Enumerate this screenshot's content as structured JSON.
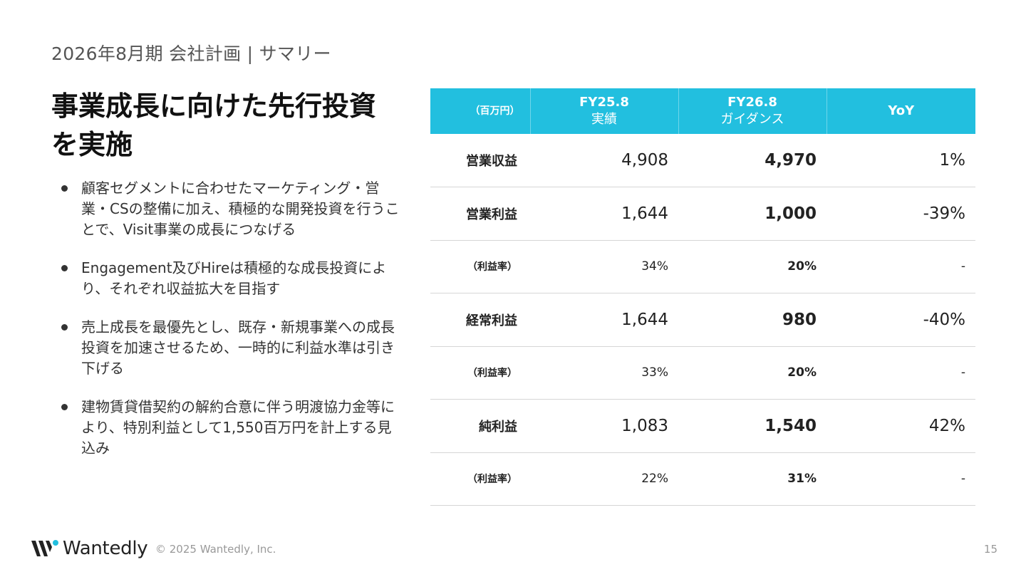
{
  "slide": {
    "section_title": "2026年8月期 会社計画 | サマリー",
    "headline": "事業成長に向けた先行投資を実施",
    "bullets": [
      "顧客セグメントに合わせたマーケティング・営業・CSの整備に加え、積極的な開発投資を行うことで、Visit事業の成長につなげる",
      "Engagement及びHireは積極的な成長投資により、それぞれ収益拡大を目指す",
      "売上成長を最優先とし、既存・新規事業への成長投資を加速させるため、一時的に利益水準は引き下げる",
      "建物賃貸借契約の解約合意に伴う明渡協力金等により、特別利益として1,550百万円を計上する見込み"
    ]
  },
  "table": {
    "header": {
      "unit": "（百万円）",
      "fy25_line1": "FY25.8",
      "fy25_line2": "実績",
      "fy26_line1": "FY26.8",
      "fy26_line2": "ガイダンス",
      "yoy": "YoY"
    },
    "rows": [
      {
        "label": "営業収益",
        "fy25": "4,908",
        "fy26": "4,970",
        "yoy": "1%"
      },
      {
        "label": "営業利益",
        "fy25": "1,644",
        "fy26": "1,000",
        "yoy": "-39%"
      },
      {
        "label": "（利益率）",
        "fy25": "34%",
        "fy26": "20%",
        "yoy": "-"
      },
      {
        "label": "経常利益",
        "fy25": "1,644",
        "fy26": "980",
        "yoy": "-40%"
      },
      {
        "label": "（利益率）",
        "fy25": "33%",
        "fy26": "20%",
        "yoy": "-"
      },
      {
        "label": "純利益",
        "fy25": "1,083",
        "fy26": "1,540",
        "yoy": "42%"
      },
      {
        "label": "（利益率）",
        "fy25": "22%",
        "fy26": "31%",
        "yoy": "-"
      }
    ]
  },
  "footer": {
    "logo_text": "Wantedly",
    "copyright": "© 2025 Wantedly, Inc.",
    "page_number": "15"
  },
  "colors": {
    "accent": "#22bfdf",
    "text": "#222222",
    "muted": "#999999"
  },
  "icons": {
    "logo": "wantedly-logo-icon"
  }
}
